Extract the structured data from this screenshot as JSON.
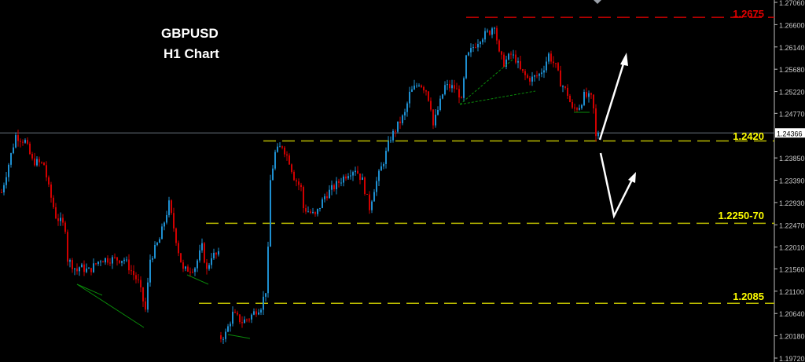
{
  "chart_data": {
    "type": "candlestick",
    "title": "GBPUSD",
    "subtitle": "H1 Chart",
    "symbol": "GBPUSD",
    "timeframe": "H1",
    "ylim": [
      1.1972,
      1.2706
    ],
    "y_ticks": [
      "1.27060",
      "1.26600",
      "1.26140",
      "1.25680",
      "1.25220",
      "1.24770",
      "1.23850",
      "1.23390",
      "1.22930",
      "1.22470",
      "1.22010",
      "1.21560",
      "1.21100",
      "1.20640",
      "1.20180",
      "1.19720"
    ],
    "current_price": "1.24366",
    "price_path_bar_close": [
      [
        0,
        1.2314
      ],
      [
        6,
        1.2431
      ],
      [
        10,
        1.2419
      ],
      [
        13,
        1.2379
      ],
      [
        18,
        1.2371
      ],
      [
        20,
        1.2322
      ],
      [
        23,
        1.2265
      ],
      [
        27,
        1.2241
      ],
      [
        28,
        1.2176
      ],
      [
        32,
        1.2152
      ],
      [
        33,
        1.216
      ],
      [
        37,
        1.2152
      ],
      [
        42,
        1.2176
      ],
      [
        52,
        1.2176
      ],
      [
        55,
        1.2152
      ],
      [
        58,
        1.2128
      ],
      [
        61,
        1.2071
      ],
      [
        63,
        1.2176
      ],
      [
        67,
        1.2217
      ],
      [
        71,
        1.229
      ],
      [
        73,
        1.2241
      ],
      [
        75,
        1.2193
      ],
      [
        77,
        1.2152
      ],
      [
        82,
        1.216
      ],
      [
        85,
        1.2201
      ],
      [
        87,
        1.2152
      ],
      [
        89,
        1.2184
      ],
      [
        92,
        1.2184
      ],
      [
        93,
        1.2014
      ],
      [
        95,
        1.2022
      ],
      [
        98,
        1.2063
      ],
      [
        102,
        1.2047
      ],
      [
        105,
        1.2055
      ],
      [
        108,
        1.2071
      ],
      [
        110,
        1.2079
      ],
      [
        112,
        1.2112
      ],
      [
        113,
        1.2193
      ],
      [
        114,
        1.2338
      ],
      [
        116,
        1.2395
      ],
      [
        119,
        1.2411
      ],
      [
        122,
        1.2379
      ],
      [
        124,
        1.2346
      ],
      [
        127,
        1.2322
      ],
      [
        128,
        1.2282
      ],
      [
        133,
        1.2265
      ],
      [
        137,
        1.2306
      ],
      [
        142,
        1.233
      ],
      [
        147,
        1.2355
      ],
      [
        150,
        1.2363
      ],
      [
        153,
        1.2338
      ],
      [
        156,
        1.2282
      ],
      [
        158,
        1.2322
      ],
      [
        162,
        1.2379
      ],
      [
        165,
        1.2427
      ],
      [
        168,
        1.2452
      ],
      [
        171,
        1.2476
      ],
      [
        173,
        1.2517
      ],
      [
        177,
        1.2541
      ],
      [
        180,
        1.2525
      ],
      [
        182,
        1.2492
      ],
      [
        183,
        1.2452
      ],
      [
        186,
        1.25
      ],
      [
        188,
        1.2533
      ],
      [
        192,
        1.253
      ],
      [
        194,
        1.2517
      ],
      [
        195,
        1.25
      ],
      [
        197,
        1.2589
      ],
      [
        200,
        1.2614
      ],
      [
        203,
        1.2633
      ],
      [
        207,
        1.2646
      ],
      [
        209,
        1.2662
      ],
      [
        211,
        1.2598
      ],
      [
        213,
        1.2581
      ],
      [
        216,
        1.2598
      ],
      [
        218,
        1.2589
      ],
      [
        220,
        1.2565
      ],
      [
        223,
        1.2549
      ],
      [
        225,
        1.2549
      ],
      [
        228,
        1.2557
      ],
      [
        230,
        1.2573
      ],
      [
        232,
        1.2598
      ],
      [
        235,
        1.2573
      ],
      [
        237,
        1.2541
      ],
      [
        240,
        1.2517
      ],
      [
        242,
        1.2484
      ],
      [
        245,
        1.2492
      ],
      [
        247,
        1.2513
      ],
      [
        250,
        1.2508
      ],
      [
        251,
        1.2484
      ],
      [
        252,
        1.2427
      ],
      [
        253,
        1.24366
      ]
    ],
    "levels": [
      {
        "label": "1.2675",
        "price": 1.2675,
        "color": "#e00000"
      },
      {
        "label": "1.2420",
        "price": 1.242,
        "color": "#e0e000"
      },
      {
        "label": "1.2250-70",
        "price": 1.225,
        "color": "#e0e000"
      },
      {
        "label": "1.2085",
        "price": 1.2085,
        "color": "#e0e000"
      }
    ],
    "colors": {
      "up": "#1e8fd0",
      "down": "#d00000",
      "background": "#000000",
      "pattern": "#0a8a0a",
      "arrow": "#ffffff"
    },
    "grid": false
  }
}
